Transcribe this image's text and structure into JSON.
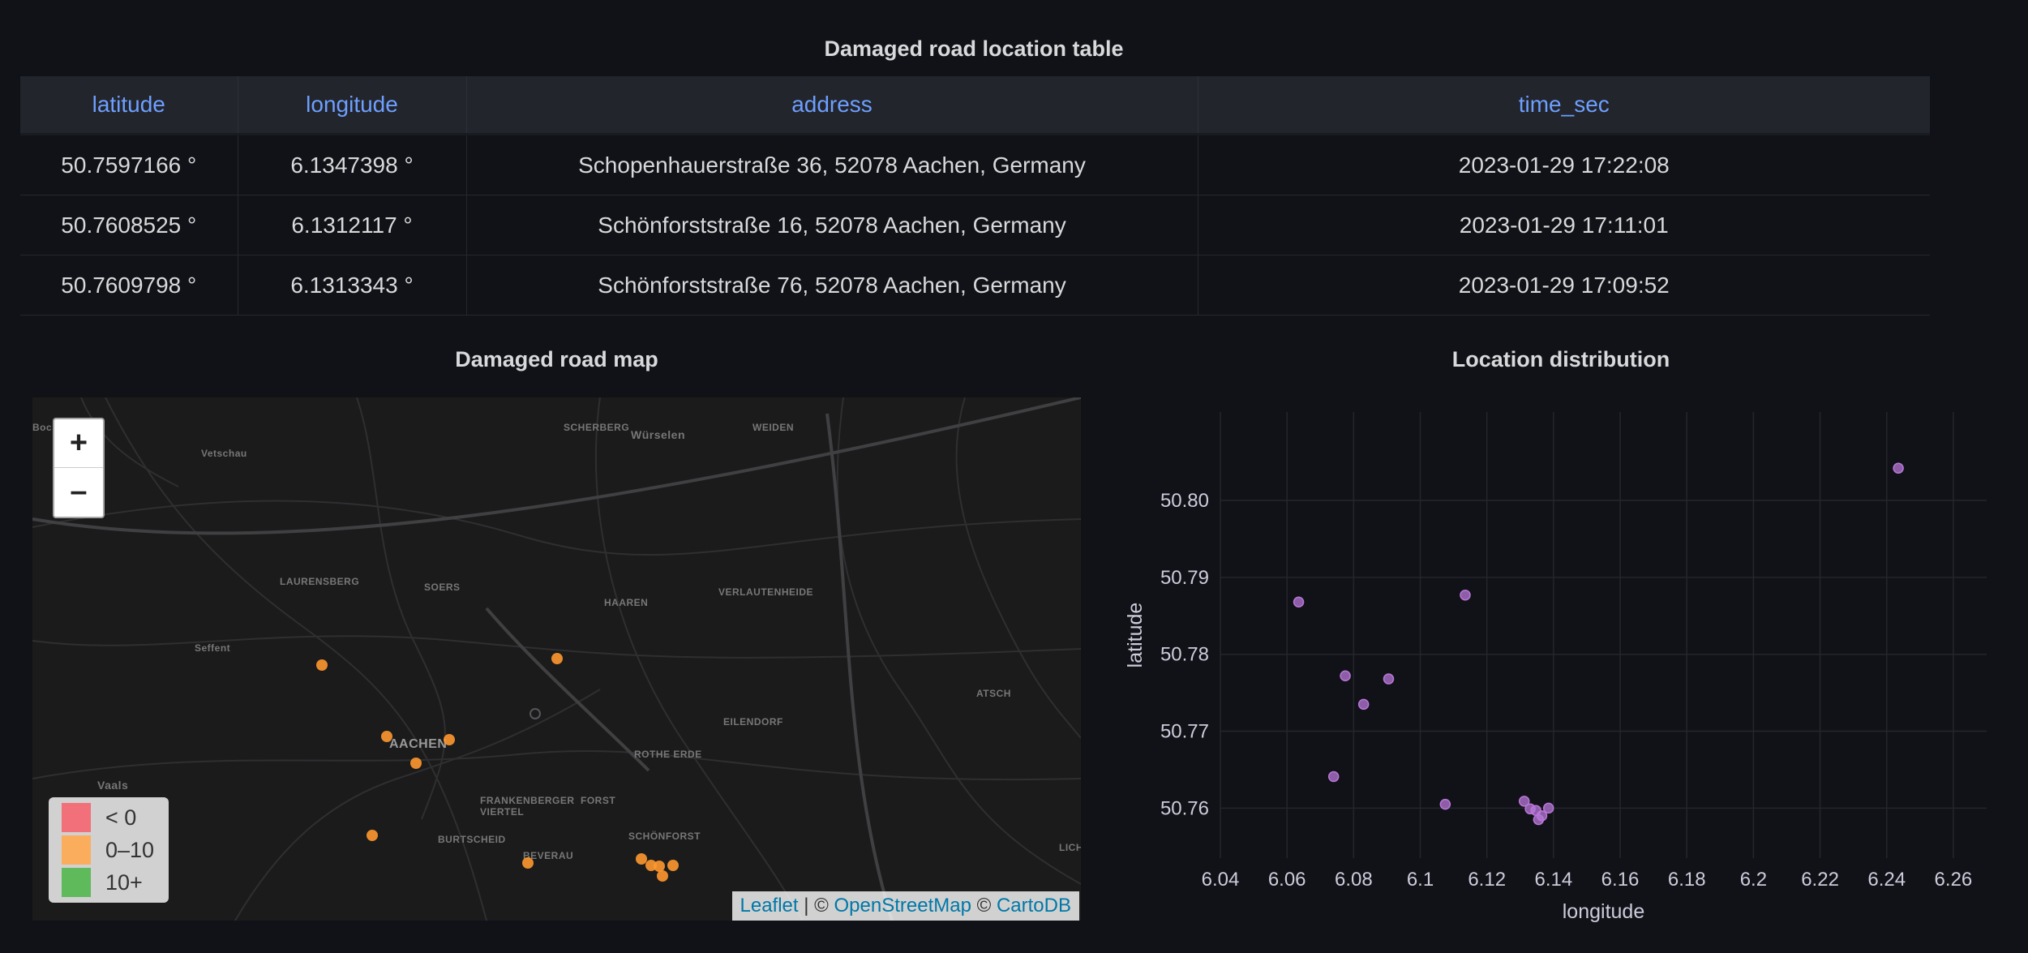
{
  "table_panel": {
    "title": "Damaged road location table",
    "columns": [
      "latitude",
      "longitude",
      "address",
      "time_sec"
    ],
    "rows": [
      [
        "50.7597166 °",
        "6.1347398 °",
        "Schopenhauerstraße 36, 52078 Aachen, Germany",
        "2023-01-29 17:22:08"
      ],
      [
        "50.7608525 °",
        "6.1312117 °",
        "Schönforststraße 16, 52078 Aachen, Germany",
        "2023-01-29 17:11:01"
      ],
      [
        "50.7609798 °",
        "6.1313343 °",
        "Schönforststraße 76, 52078 Aachen, Germany",
        "2023-01-29 17:09:52"
      ]
    ]
  },
  "map_panel": {
    "title": "Damaged road map",
    "zoom_in": "+",
    "zoom_out": "–",
    "legend": [
      {
        "label": "< 0",
        "color": "#f2707a"
      },
      {
        "label": "0–10",
        "color": "#fbad5e"
      },
      {
        "label": "10+",
        "color": "#5fba5b"
      }
    ],
    "attribution": {
      "leaflet": "Leaflet",
      "sep": " | © ",
      "osm": "OpenStreetMap",
      "copy": " © ",
      "carto": "CartoDB"
    },
    "place_labels": [
      "SCHERBERG",
      "Würselen",
      "WEIDEN",
      "Vetschau",
      "LAURENSBERG",
      "SOERS",
      "HAAREN",
      "VERLAUTENHEIDE",
      "Seffent",
      "EILENDORF",
      "ATSCH",
      "AACHEN",
      "ROTHE ERDE",
      "Vaals",
      "FRANKENBERGER VIERTEL",
      "FORST",
      "BURTSCHEID",
      "SCHÖNFORST",
      "BEVERAU",
      "LICH",
      "Boc"
    ],
    "marker_color": "#ff9830"
  },
  "scatter_panel": {
    "title": "Location distribution",
    "point_color": "#b877d9"
  },
  "chart_data": {
    "type": "scatter",
    "title": "Location distribution",
    "xlabel": "longitude",
    "ylabel": "latitude",
    "xlim": [
      6.04,
      6.27
    ],
    "ylim": [
      50.7535,
      50.8115
    ],
    "xticks": [
      "6.04",
      "6.06",
      "6.08",
      "6.1",
      "6.12",
      "6.14",
      "6.16",
      "6.18",
      "6.2",
      "6.22",
      "6.24",
      "6.26"
    ],
    "yticks": [
      "50.76",
      "50.77",
      "50.78",
      "50.79",
      "50.80"
    ],
    "grid": true,
    "points": [
      {
        "x": 6.2435,
        "y": 50.8042
      },
      {
        "x": 6.0635,
        "y": 50.7868
      },
      {
        "x": 6.1135,
        "y": 50.7877
      },
      {
        "x": 6.0775,
        "y": 50.7772
      },
      {
        "x": 6.0905,
        "y": 50.7768
      },
      {
        "x": 6.083,
        "y": 50.7735
      },
      {
        "x": 6.074,
        "y": 50.7641
      },
      {
        "x": 6.1075,
        "y": 50.7605
      },
      {
        "x": 6.1312,
        "y": 50.7609
      },
      {
        "x": 6.133,
        "y": 50.7599
      },
      {
        "x": 6.1347,
        "y": 50.7597
      },
      {
        "x": 6.1365,
        "y": 50.759
      },
      {
        "x": 6.1355,
        "y": 50.7585
      },
      {
        "x": 6.1385,
        "y": 50.76
      }
    ]
  }
}
